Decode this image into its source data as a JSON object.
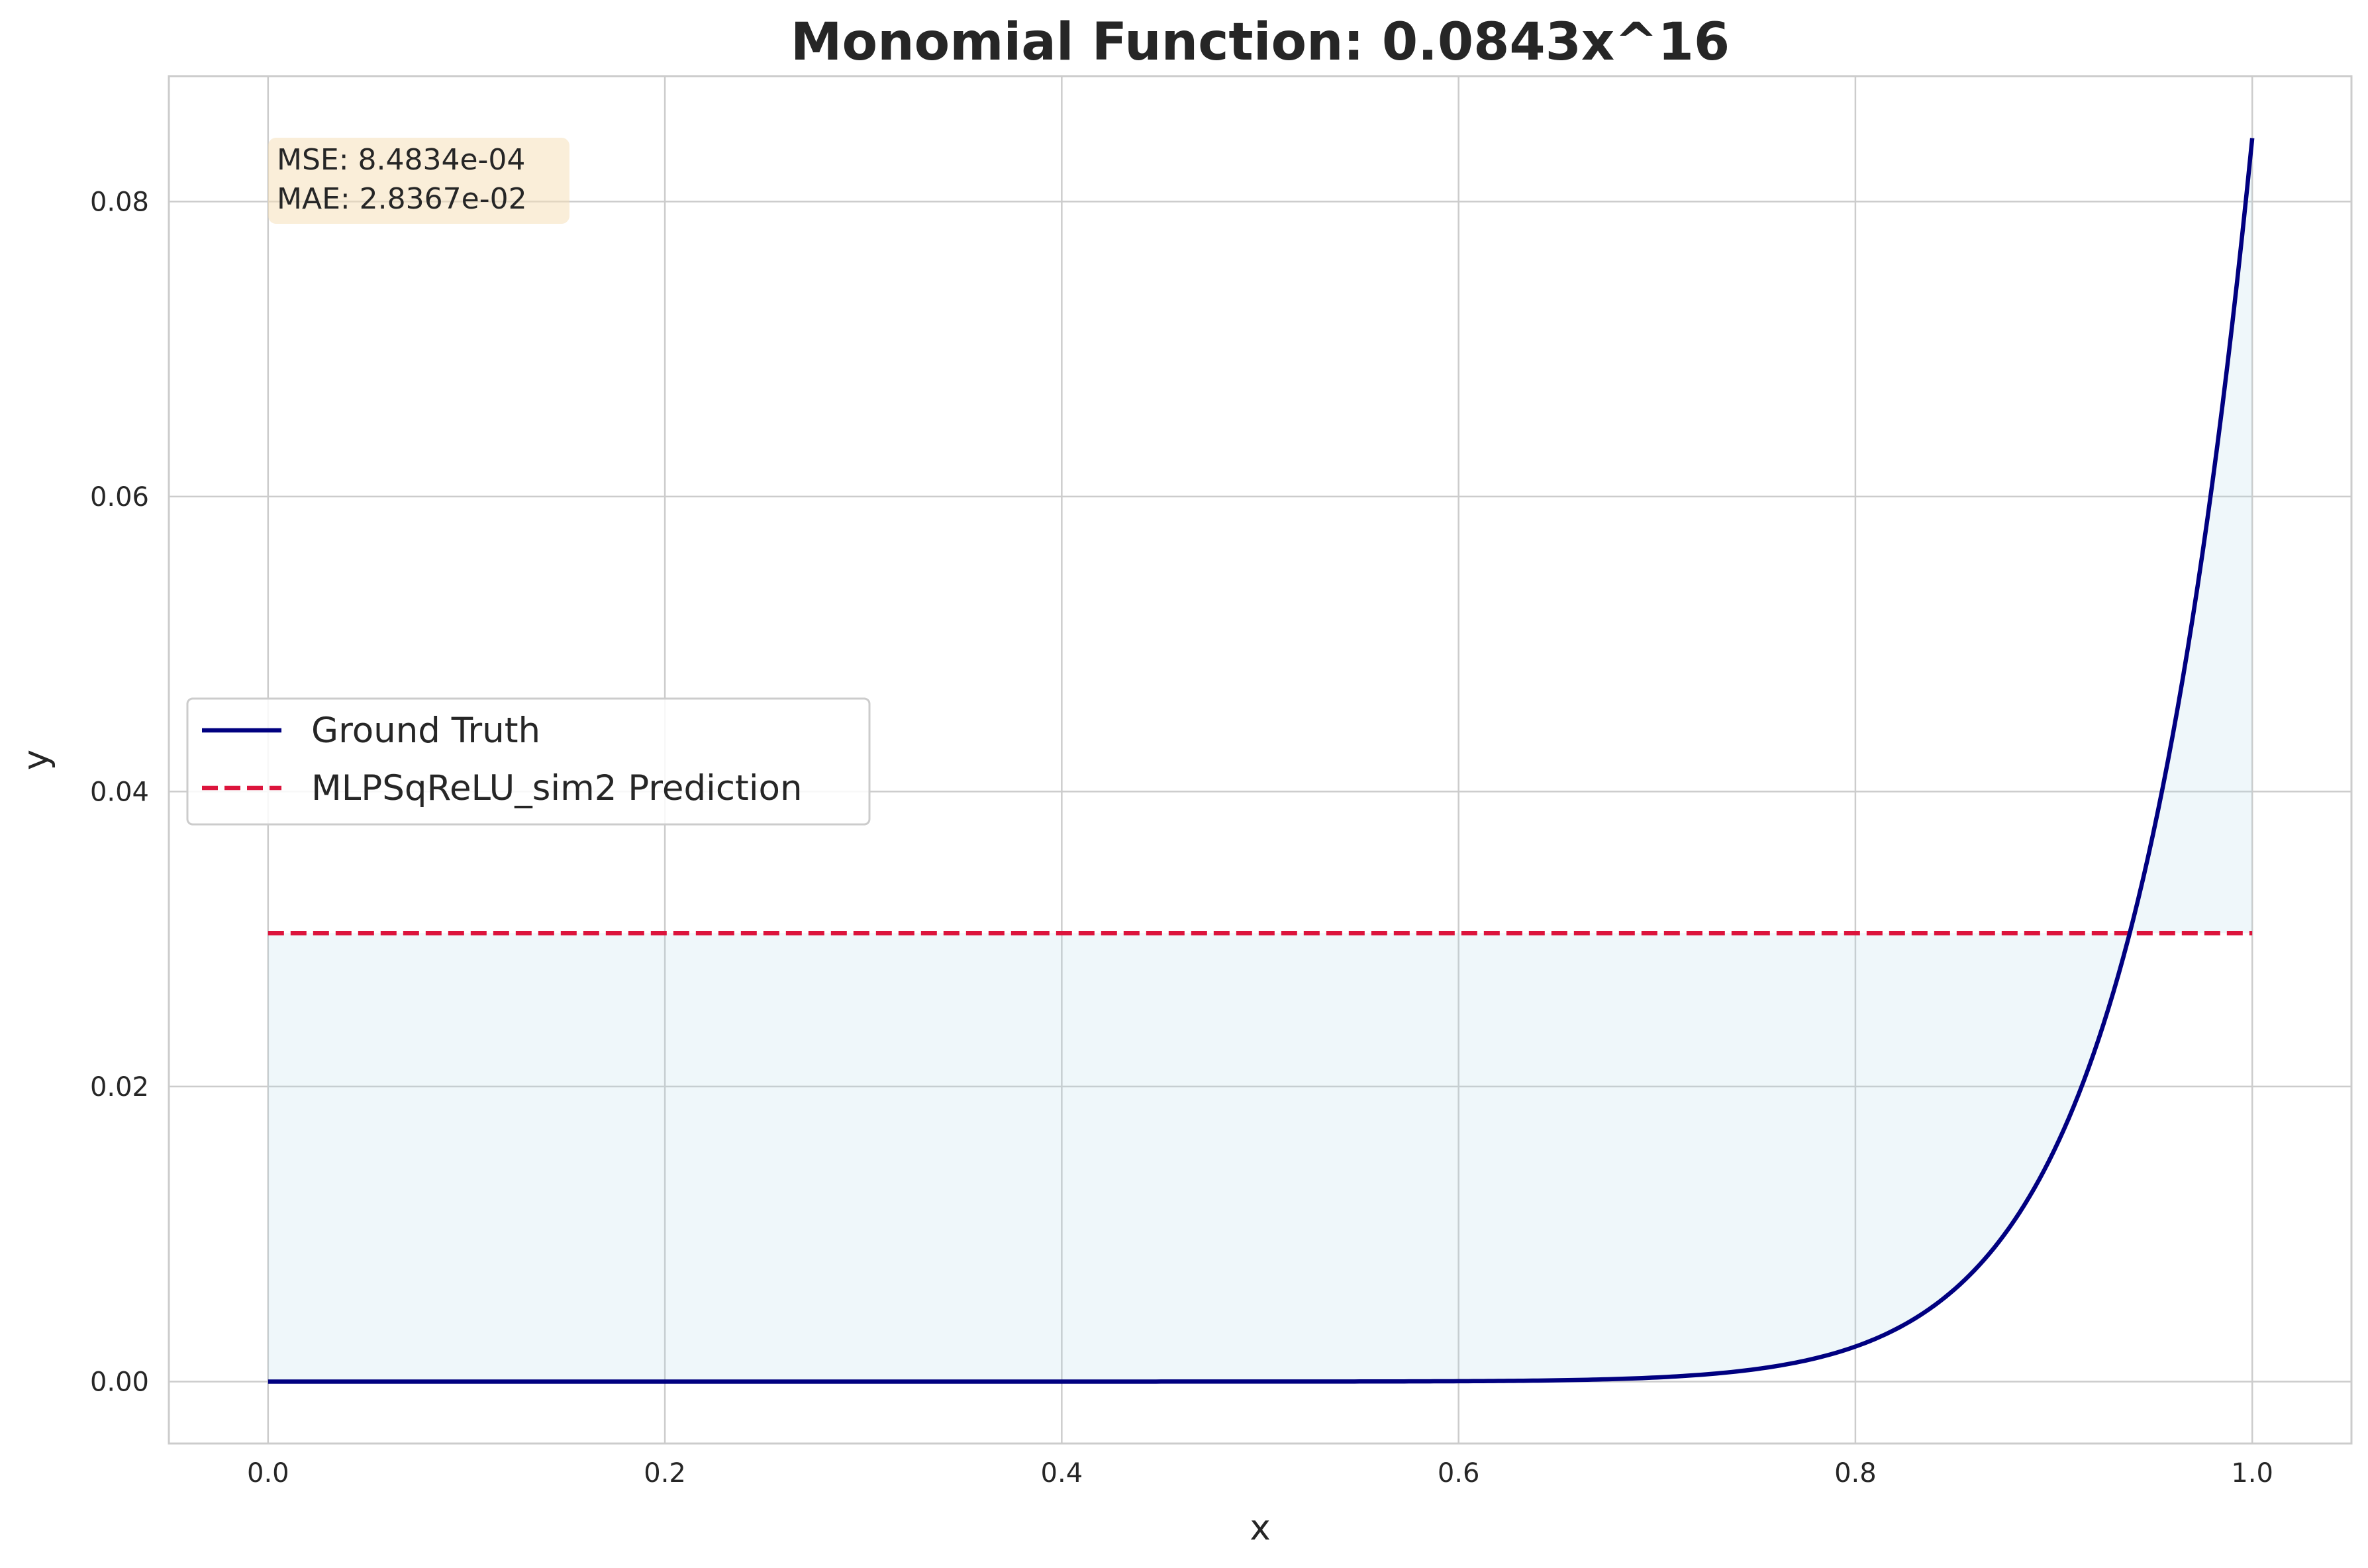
{
  "chart_data": {
    "type": "line",
    "title": "Monomial Function: 0.0843x^16",
    "xlabel": "x",
    "ylabel": "y",
    "xlim": [
      -0.05,
      1.05
    ],
    "ylim": [
      -0.0042,
      0.0885
    ],
    "grid": true,
    "legend_position": "center-left",
    "x_ticks": [
      0.0,
      0.2,
      0.4,
      0.6,
      0.8,
      1.0
    ],
    "x_tick_labels": [
      "0.0",
      "0.2",
      "0.4",
      "0.6",
      "0.8",
      "1.0"
    ],
    "y_ticks": [
      0.0,
      0.02,
      0.04,
      0.06,
      0.08
    ],
    "y_tick_labels": [
      "0.00",
      "0.02",
      "0.04",
      "0.06",
      "0.08"
    ],
    "series": [
      {
        "name": "Ground Truth",
        "color": "#000080",
        "style": "solid",
        "function": "0.0843*x^16",
        "x_range": [
          0.0,
          1.0
        ],
        "sample_points": [
          {
            "x": 0.0,
            "y": 0.0
          },
          {
            "x": 0.6,
            "y": 2e-05
          },
          {
            "x": 0.8,
            "y": 0.00237
          },
          {
            "x": 0.9,
            "y": 0.0156
          },
          {
            "x": 0.95,
            "y": 0.0371
          },
          {
            "x": 1.0,
            "y": 0.0843
          }
        ]
      },
      {
        "name": "MLPSqReLU_sim2 Prediction",
        "color": "#DC143C",
        "style": "dashed",
        "x": [
          0.0,
          1.0
        ],
        "y": [
          0.0304,
          0.0304
        ]
      }
    ],
    "fill_between_color": "#add8e6",
    "metrics": {
      "mse": "MSE: 8.4834e-04",
      "mae": "MAE: 2.8367e-02"
    }
  }
}
